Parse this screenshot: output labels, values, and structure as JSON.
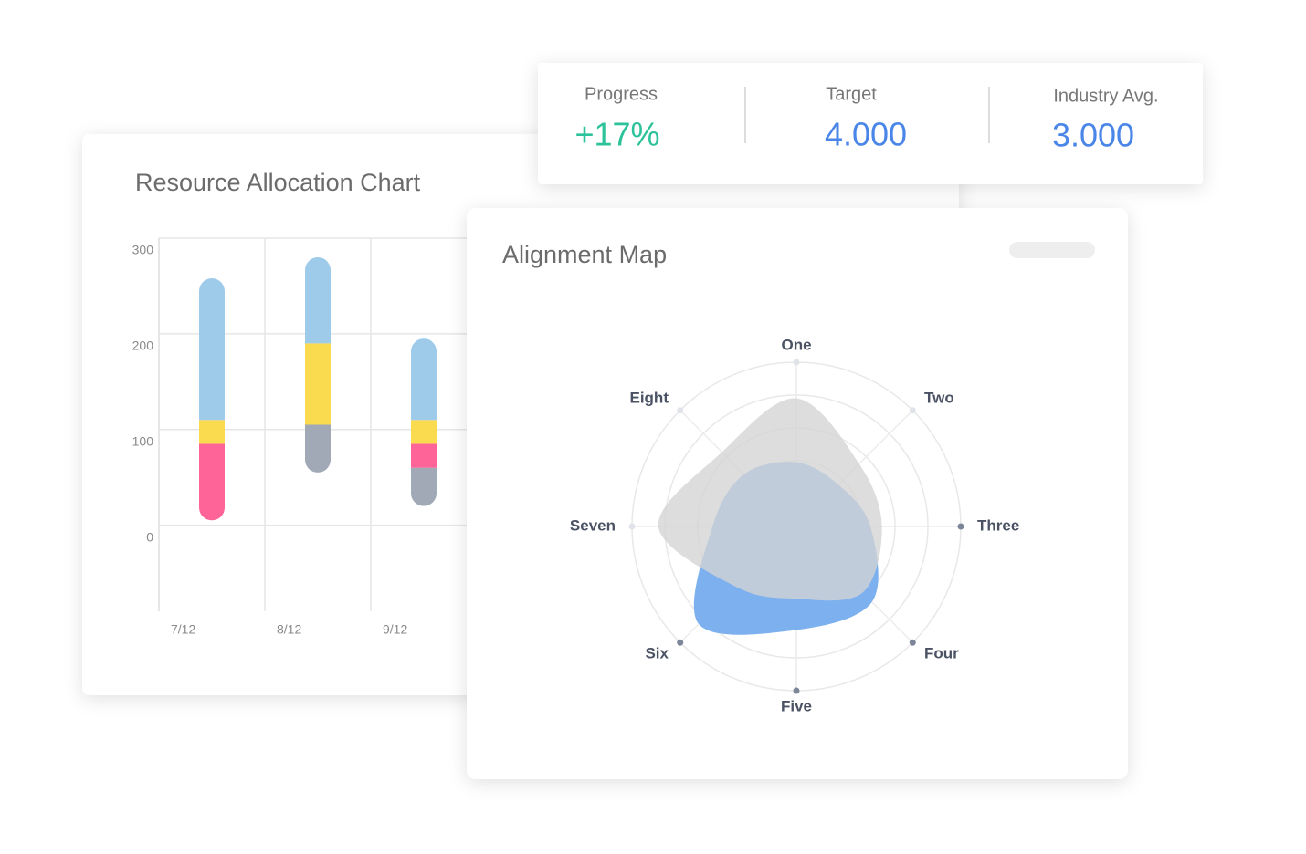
{
  "stats": [
    {
      "label": "Progress",
      "value": "+17%"
    },
    {
      "label": "Target",
      "value": "4.000"
    },
    {
      "label": "Industry Avg.",
      "value": "3.000"
    }
  ],
  "chart_data": [
    {
      "type": "bar",
      "title": "Resource Allocation Chart",
      "categories": [
        "7/12",
        "8/12",
        "9/12"
      ],
      "base": [
        5,
        55,
        20
      ],
      "series": [
        {
          "color": "#a1a9b6",
          "values": [
            0,
            50,
            40
          ]
        },
        {
          "color": "#ff6499",
          "values": [
            80,
            0,
            25
          ]
        },
        {
          "color": "#fada4f",
          "values": [
            25,
            85,
            25
          ]
        },
        {
          "color": "#9fcbeb",
          "values": [
            148,
            90,
            85
          ]
        }
      ],
      "ylim": [
        -90,
        300
      ],
      "yticks": [
        0,
        100,
        200,
        300
      ],
      "grid": true
    },
    {
      "type": "radar",
      "title": "Alignment Map",
      "categories": [
        "One",
        "Two",
        "Three",
        "Four",
        "Five",
        "Six",
        "Seven",
        "Eight"
      ],
      "series": [
        {
          "color": "#7cb0ee",
          "values": [
            39,
            36,
            45,
            65,
            63,
            84,
            51,
            45
          ]
        },
        {
          "color": "#d4d4d4",
          "values": [
            78,
            54,
            52,
            57,
            44,
            52,
            84,
            64
          ]
        }
      ],
      "rlim": [
        0,
        100
      ],
      "rticks": [
        20,
        40,
        60,
        80,
        100
      ]
    }
  ]
}
